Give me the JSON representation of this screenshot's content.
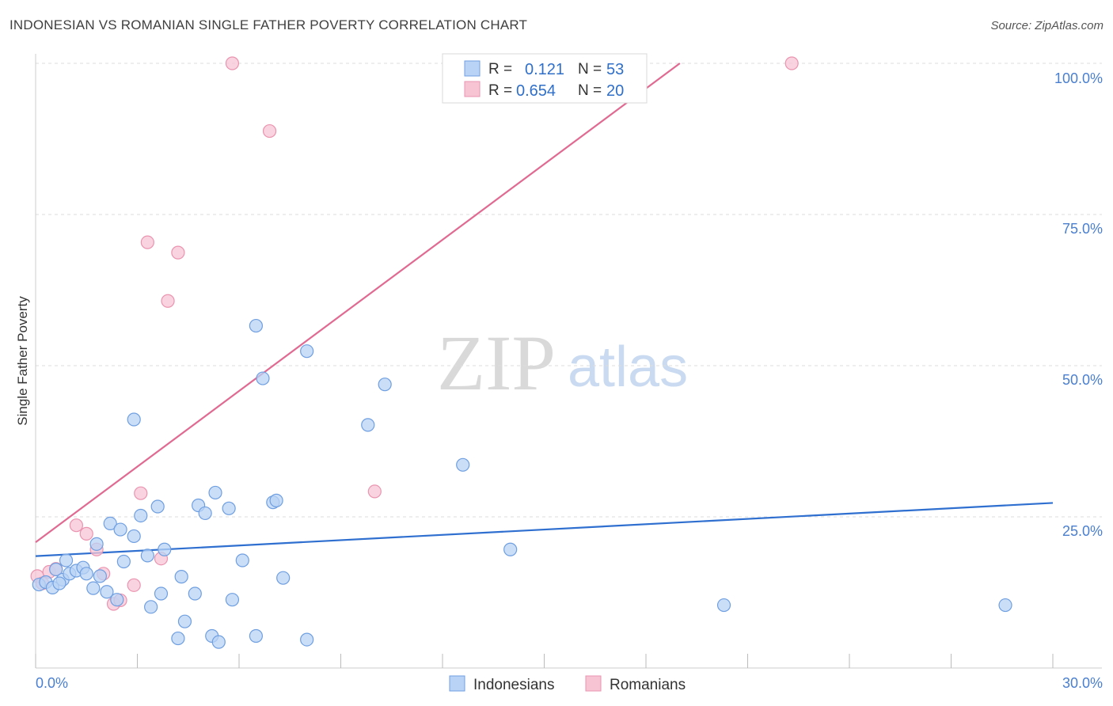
{
  "header": {
    "title": "INDONESIAN VS ROMANIAN SINGLE FATHER POVERTY CORRELATION CHART",
    "source": "Source: ZipAtlas.com"
  },
  "watermark": {
    "zip": "ZIP",
    "atlas": "atlas"
  },
  "colors": {
    "blue_fill": "#b8d3f5",
    "blue_stroke": "#6f9fe0",
    "blue_line": "#2f6fcf",
    "pink_fill": "#f7c4d4",
    "pink_stroke": "#ea94b0",
    "pink_line": "#e06a92",
    "grid": "#dddddd"
  },
  "stats_legend": {
    "rows": [
      {
        "r_label": "R =",
        "r_value": "0.121",
        "n_label": "N =",
        "n_value": "53",
        "series": "Indonesians"
      },
      {
        "r_label": "R =",
        "r_value": "0.654",
        "n_label": "N =",
        "n_value": "20",
        "series": "Romanians"
      }
    ]
  },
  "bottom_legend": {
    "items": [
      "Indonesians",
      "Romanians"
    ]
  },
  "chart_data": {
    "type": "scatter",
    "title": "INDONESIAN VS ROMANIAN SINGLE FATHER POVERTY CORRELATION CHART",
    "xlabel": "",
    "ylabel": "Single Father Poverty",
    "xlim": [
      0,
      30
    ],
    "ylim": [
      0,
      100
    ],
    "x_tick_labels": [
      "0.0%",
      "30.0%"
    ],
    "y_ticks": [
      25,
      50,
      75,
      100
    ],
    "y_tick_labels": [
      "25.0%",
      "50.0%",
      "75.0%",
      "100.0%"
    ],
    "grid": true,
    "series": [
      {
        "name": "Indonesians",
        "r": 0.121,
        "n": 53,
        "trend": [
          [
            0,
            18.5
          ],
          [
            30,
            27.3
          ]
        ],
        "points": [
          [
            0.1,
            13.8
          ],
          [
            0.3,
            14.2
          ],
          [
            0.5,
            13.3
          ],
          [
            0.6,
            16.3
          ],
          [
            0.8,
            14.6
          ],
          [
            0.9,
            17.8
          ],
          [
            1.0,
            15.6
          ],
          [
            1.2,
            16.1
          ],
          [
            1.4,
            16.6
          ],
          [
            1.5,
            15.6
          ],
          [
            1.7,
            13.2
          ],
          [
            1.8,
            20.5
          ],
          [
            1.9,
            15.2
          ],
          [
            2.1,
            12.6
          ],
          [
            2.2,
            23.9
          ],
          [
            2.4,
            11.3
          ],
          [
            2.5,
            22.9
          ],
          [
            2.6,
            17.6
          ],
          [
            2.9,
            21.8
          ],
          [
            2.9,
            41.1
          ],
          [
            3.1,
            25.2
          ],
          [
            3.3,
            18.6
          ],
          [
            3.4,
            10.1
          ],
          [
            3.6,
            26.7
          ],
          [
            3.7,
            12.3
          ],
          [
            3.8,
            19.6
          ],
          [
            4.2,
            4.9
          ],
          [
            4.3,
            15.1
          ],
          [
            4.4,
            7.7
          ],
          [
            4.7,
            12.3
          ],
          [
            4.8,
            26.9
          ],
          [
            5.0,
            25.6
          ],
          [
            5.2,
            5.3
          ],
          [
            5.3,
            29.0
          ],
          [
            5.4,
            4.3
          ],
          [
            5.7,
            26.4
          ],
          [
            5.8,
            11.3
          ],
          [
            6.1,
            17.8
          ],
          [
            6.5,
            5.3
          ],
          [
            6.5,
            56.6
          ],
          [
            6.7,
            47.9
          ],
          [
            7.0,
            27.4
          ],
          [
            7.1,
            27.7
          ],
          [
            7.3,
            14.9
          ],
          [
            8.0,
            4.7
          ],
          [
            8.0,
            52.4
          ],
          [
            9.8,
            40.2
          ],
          [
            10.3,
            46.9
          ],
          [
            12.6,
            33.6
          ],
          [
            14.0,
            19.6
          ],
          [
            20.3,
            10.4
          ],
          [
            28.6,
            10.4
          ],
          [
            0.7,
            14.0
          ]
        ]
      },
      {
        "name": "Romanians",
        "r": 0.654,
        "n": 20,
        "trend": [
          [
            0,
            20.8
          ],
          [
            19,
            100
          ]
        ],
        "points": [
          [
            0.05,
            15.2
          ],
          [
            0.2,
            14.0
          ],
          [
            0.4,
            15.9
          ],
          [
            0.6,
            16.4
          ],
          [
            1.2,
            23.6
          ],
          [
            1.5,
            22.2
          ],
          [
            1.8,
            19.6
          ],
          [
            2.0,
            15.6
          ],
          [
            2.3,
            10.6
          ],
          [
            2.5,
            11.2
          ],
          [
            2.9,
            13.7
          ],
          [
            3.1,
            28.9
          ],
          [
            3.3,
            70.4
          ],
          [
            3.7,
            18.1
          ],
          [
            3.9,
            60.7
          ],
          [
            4.2,
            68.7
          ],
          [
            5.8,
            100
          ],
          [
            6.9,
            88.8
          ],
          [
            10.0,
            29.2
          ],
          [
            22.3,
            100
          ]
        ]
      }
    ]
  }
}
